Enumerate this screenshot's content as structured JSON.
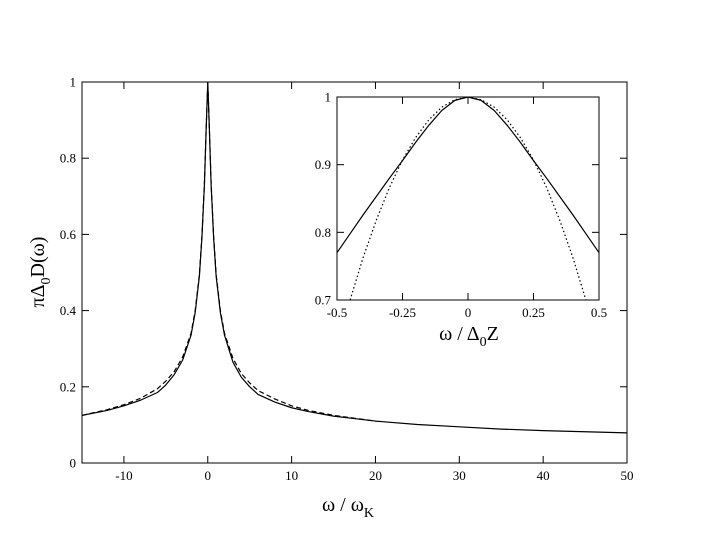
{
  "chart_data": [
    {
      "type": "line",
      "title": "",
      "xlabel": {
        "main": "ω / ω",
        "sub": "K"
      },
      "ylabel": {
        "pre": "πΔ",
        "sub": "0",
        "post": "D(ω)"
      },
      "xlim": [
        -15,
        50
      ],
      "ylim": [
        0,
        1
      ],
      "xticks": [
        -10,
        0,
        10,
        20,
        30,
        40,
        50
      ],
      "xtick_labels": [
        "-10",
        "0",
        "10",
        "20",
        "30",
        "40",
        "50"
      ],
      "yticks": [
        0,
        0.2,
        0.4,
        0.6,
        0.8,
        1
      ],
      "ytick_labels": [
        "0",
        "0.2",
        "0.4",
        "0.6",
        "0.8",
        "1"
      ],
      "grid": false,
      "legend": "none",
      "series": [
        {
          "style": "solid",
          "x": [
            -15,
            -12,
            -10,
            -8,
            -6,
            -5,
            -4,
            -3,
            -2,
            -1.5,
            -1,
            -0.7,
            -0.4,
            -0.2,
            0,
            0.2,
            0.4,
            0.7,
            1,
            1.5,
            2,
            3,
            4,
            5,
            6,
            8,
            10,
            12,
            15,
            20,
            25,
            30,
            35,
            40,
            45,
            50
          ],
          "y": [
            0.125,
            0.138,
            0.15,
            0.165,
            0.185,
            0.205,
            0.232,
            0.27,
            0.335,
            0.395,
            0.49,
            0.59,
            0.73,
            0.87,
            1.0,
            0.87,
            0.73,
            0.59,
            0.49,
            0.395,
            0.335,
            0.265,
            0.225,
            0.2,
            0.18,
            0.16,
            0.145,
            0.135,
            0.123,
            0.11,
            0.101,
            0.095,
            0.089,
            0.085,
            0.082,
            0.079
          ]
        },
        {
          "style": "dashed",
          "x": [
            -15,
            -12,
            -10,
            -8,
            -6,
            -5,
            -4,
            -3,
            -2,
            -1.5,
            -1,
            -0.7,
            -0.4,
            -0.2,
            0,
            0.2,
            0.4,
            0.7,
            1,
            1.5,
            2,
            3,
            4,
            5,
            6,
            8,
            10,
            12,
            15,
            20
          ],
          "y": [
            0.125,
            0.14,
            0.153,
            0.17,
            0.195,
            0.215,
            0.24,
            0.278,
            0.34,
            0.4,
            0.495,
            0.595,
            0.735,
            0.872,
            1.0,
            0.872,
            0.735,
            0.595,
            0.495,
            0.4,
            0.34,
            0.275,
            0.235,
            0.21,
            0.19,
            0.168,
            0.15,
            0.138,
            0.125,
            0.11
          ]
        }
      ]
    },
    {
      "type": "line",
      "title": "",
      "xlabel": {
        "main": "ω / Δ",
        "sub": "0",
        "post": "Z"
      },
      "ylabel": "",
      "xlim": [
        -0.5,
        0.5
      ],
      "ylim": [
        0.7,
        1
      ],
      "xticks": [
        -0.5,
        -0.25,
        0,
        0.25,
        0.5
      ],
      "xtick_labels": [
        "-0.5",
        "-0.25",
        "0",
        "0.25",
        "0.5"
      ],
      "yticks": [
        0.7,
        0.8,
        0.9,
        1
      ],
      "ytick_labels": [
        "0.7",
        "0.8",
        "0.9",
        "1"
      ],
      "grid": false,
      "legend": "none",
      "series": [
        {
          "style": "solid",
          "x": [
            -0.5,
            -0.45,
            -0.4,
            -0.35,
            -0.3,
            -0.25,
            -0.2,
            -0.15,
            -0.1,
            -0.05,
            0,
            0.05,
            0.1,
            0.15,
            0.2,
            0.25,
            0.3,
            0.35,
            0.4,
            0.45,
            0.5
          ],
          "y": [
            0.77,
            0.798,
            0.826,
            0.853,
            0.88,
            0.906,
            0.933,
            0.958,
            0.98,
            0.995,
            1.0,
            0.995,
            0.98,
            0.958,
            0.933,
            0.906,
            0.88,
            0.853,
            0.826,
            0.798,
            0.77
          ]
        },
        {
          "style": "dotted",
          "x": [
            -0.45,
            -0.4,
            -0.35,
            -0.3,
            -0.25,
            -0.2,
            -0.15,
            -0.1,
            -0.05,
            0,
            0.05,
            0.1,
            0.15,
            0.2,
            0.25,
            0.3,
            0.35,
            0.4,
            0.45
          ],
          "y": [
            0.7,
            0.763,
            0.818,
            0.866,
            0.907,
            0.94,
            0.966,
            0.985,
            0.996,
            1.0,
            0.996,
            0.985,
            0.966,
            0.94,
            0.907,
            0.866,
            0.818,
            0.763,
            0.7
          ]
        }
      ]
    }
  ]
}
